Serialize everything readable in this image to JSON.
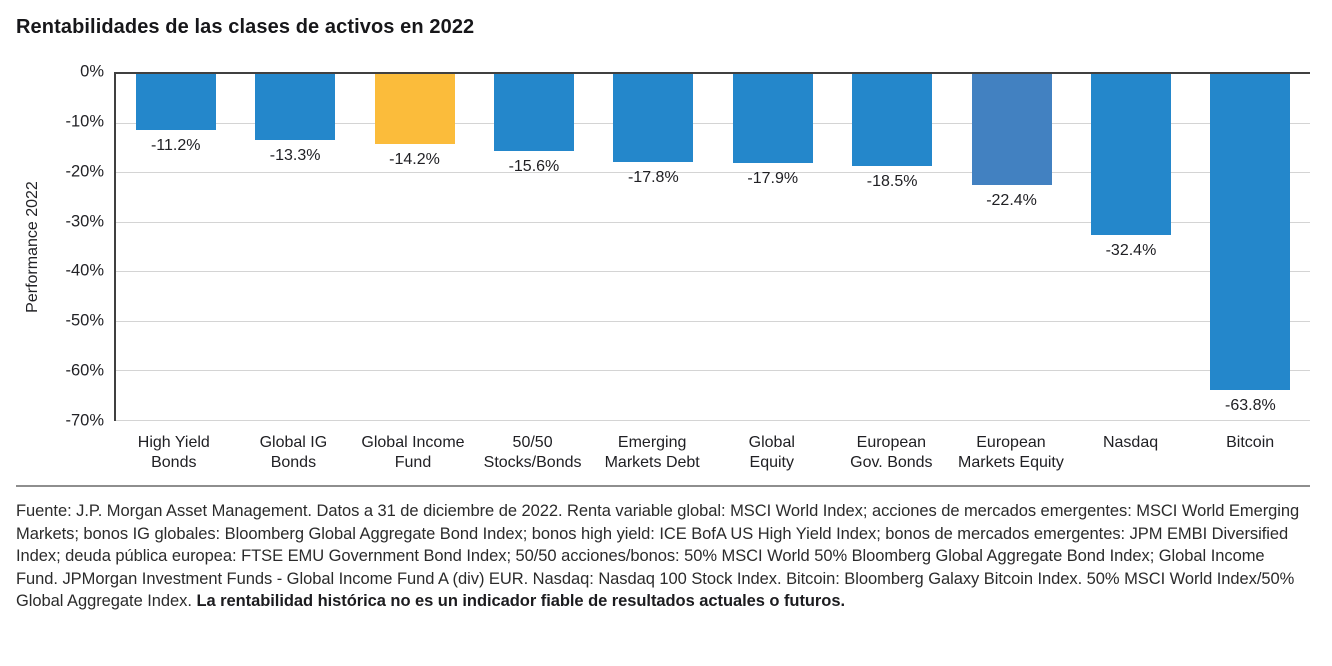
{
  "title": "Rentabilidades de las clases de activos en 2022",
  "colors": {
    "bar_blue": "#2487cb",
    "bar_yellow": "#fbbc3b",
    "bar_steel_blue": "#4281c1",
    "grid": "#d4d4d4",
    "axis": "#404040",
    "divider": "#8e8e8e"
  },
  "chart_data": {
    "type": "bar",
    "title": "Rentabilidades de las clases de activos en 2022",
    "xlabel": "",
    "ylabel": "Performance 2022",
    "ylim": [
      -70,
      0
    ],
    "grid": true,
    "legend": "none",
    "yticks": [
      0,
      -10,
      -20,
      -30,
      -40,
      -50,
      -60,
      -70
    ],
    "ytick_labels": [
      "0%",
      "-10%",
      "-20%",
      "-30%",
      "-40%",
      "-50%",
      "-60%",
      "-70%"
    ],
    "categories": [
      "High Yield Bonds",
      "Global IG Bonds",
      "Global Income Fund",
      "50/50 Stocks/Bonds",
      "Emerging Markets Debt",
      "Global Equity",
      "European Gov. Bonds",
      "European Markets Equity",
      "Nasdaq",
      "Bitcoin"
    ],
    "category_lines": [
      [
        "High Yield",
        "Bonds"
      ],
      [
        "Global IG",
        "Bonds"
      ],
      [
        "Global Income",
        "Fund"
      ],
      [
        "50/50",
        "Stocks/Bonds"
      ],
      [
        "Emerging",
        "Markets Debt"
      ],
      [
        "Global",
        "Equity"
      ],
      [
        "European",
        "Gov. Bonds"
      ],
      [
        "European",
        "Markets Equity"
      ],
      [
        "Nasdaq"
      ],
      [
        "Bitcoin"
      ]
    ],
    "values": [
      -11.2,
      -13.3,
      -14.2,
      -15.6,
      -17.8,
      -17.9,
      -18.5,
      -22.4,
      -32.4,
      -63.8
    ],
    "value_labels": [
      "-11.2%",
      "-13.3%",
      "-14.2%",
      "-15.6%",
      "-17.8%",
      "-17.9%",
      "-18.5%",
      "-22.4%",
      "-32.4%",
      "-63.8%"
    ],
    "bar_colors": [
      "#2487cb",
      "#2487cb",
      "#fbbc3b",
      "#2487cb",
      "#2487cb",
      "#2487cb",
      "#2487cb",
      "#4281c1",
      "#2487cb",
      "#2487cb"
    ]
  },
  "footer": {
    "text": "Fuente: J.P. Morgan Asset Management. Datos a 31 de diciembre de 2022. Renta variable global: MSCI World Index; acciones de mercados emergentes: MSCI World Emerging Markets; bonos IG globales: Bloomberg Global Aggregate Bond Index; bonos high yield: ICE BofA US High Yield Index; bonos de mercados emergentes: JPM EMBI Diversified Index; deuda pública europea: FTSE EMU Government Bond Index; 50/50 acciones/bonos: 50% MSCI World 50% Bloomberg Global Aggregate Bond Index; Global Income Fund. JPMorgan Investment Funds - Global Income Fund A (div) EUR. Nasdaq: Nasdaq 100 Stock Index. Bitcoin: Bloomberg Galaxy Bitcoin Index. 50% MSCI World Index/50% Global Aggregate Index. ",
    "bold_text": "La rentabilidad histórica no es un indicador fiable de resultados actuales o futuros."
  }
}
